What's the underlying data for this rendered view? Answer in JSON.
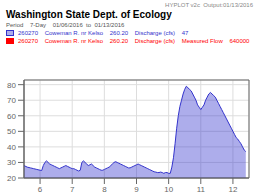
{
  "chart_data": {
    "type": "area",
    "title": "Washington State Dept. of Ecology",
    "subtitle": "Period    7-Day    01/06/2016  to  01/13/2016",
    "annotations": [
      {
        "text": "HYPLOT v2c  Output:01/13/2016"
      },
      {
        "text": "260270    Coweman R. nr Kelso    260.20    Discharge (cfs)    Measured Flow    640000",
        "color": "red"
      }
    ],
    "x": [
      5.5,
      5.6,
      5.7,
      5.8,
      5.9,
      6.0,
      6.05,
      6.1,
      6.15,
      6.2,
      6.25,
      6.3,
      6.35,
      6.4,
      6.45,
      6.5,
      6.55,
      6.6,
      6.65,
      6.7,
      6.75,
      6.8,
      6.85,
      6.9,
      6.95,
      7.0,
      7.05,
      7.1,
      7.15,
      7.2,
      7.25,
      7.3,
      7.35,
      7.4,
      7.45,
      7.5,
      7.55,
      7.6,
      7.65,
      7.7,
      7.75,
      7.8,
      7.85,
      7.9,
      7.95,
      8.0,
      8.05,
      8.1,
      8.15,
      8.2,
      8.25,
      8.3,
      8.35,
      8.4,
      8.45,
      8.5,
      8.55,
      8.6,
      8.65,
      8.7,
      8.75,
      8.8,
      8.85,
      8.9,
      8.95,
      9.0,
      9.05,
      9.1,
      9.15,
      9.2,
      9.25,
      9.3,
      9.35,
      9.4,
      9.45,
      9.5,
      9.55,
      9.6,
      9.65,
      9.7,
      9.75,
      9.8,
      9.85,
      9.9,
      9.95,
      10.0,
      10.05,
      10.1,
      10.15,
      10.2,
      10.25,
      10.3,
      10.35,
      10.4,
      10.45,
      10.5,
      10.55,
      10.6,
      10.65,
      10.7,
      10.75,
      10.8,
      10.85,
      10.9,
      10.95,
      11.0,
      11.05,
      11.1,
      11.15,
      11.2,
      11.25,
      11.3,
      11.35,
      11.4,
      11.45,
      11.5,
      11.55,
      11.6,
      11.65,
      11.7,
      11.75,
      11.8,
      11.85,
      11.9,
      11.95,
      12.0,
      12.05,
      12.1,
      12.15,
      12.2,
      12.25,
      12.3,
      12.35,
      12.4
    ],
    "series": [
      {
        "name": "260270    Coweman R. nr Kelso    260.20    Discharge (cfs)    47",
        "color": "#3333cc",
        "values": [
          28,
          27,
          26.5,
          26,
          25.5,
          25,
          24.8,
          28,
          30,
          31,
          30,
          29,
          28.5,
          28,
          27.5,
          27,
          26.5,
          26,
          26.5,
          27,
          27.5,
          28,
          27.5,
          27,
          26.5,
          26,
          26,
          25.5,
          25,
          24.5,
          25,
          30,
          31,
          30,
          29,
          28,
          28.5,
          29,
          28,
          27,
          26.5,
          26,
          25.5,
          25,
          25,
          25.5,
          26,
          26.5,
          27,
          28,
          29,
          30,
          30.5,
          30,
          29.5,
          29,
          28.5,
          28,
          27.5,
          27,
          26.5,
          26.5,
          27,
          27.5,
          28,
          28.5,
          29,
          28.5,
          28,
          27.5,
          27,
          26.5,
          26,
          25.5,
          25,
          24.5,
          24,
          23.8,
          23.5,
          23.5,
          23.8,
          23.5,
          23,
          23.5,
          23.5,
          23,
          23,
          27,
          33,
          42,
          52,
          60,
          66,
          70,
          74,
          77,
          79,
          78,
          77,
          76,
          74,
          72,
          70,
          67,
          65.5,
          64,
          65.5,
          67,
          70,
          72,
          74,
          75,
          74,
          73,
          72,
          70,
          68,
          66,
          64,
          62,
          60,
          58,
          56,
          54,
          52,
          50,
          48,
          46,
          45,
          43.5,
          42,
          40,
          38,
          37
        ]
      }
    ],
    "xlim": [
      5.5,
      12.5
    ],
    "xticks": [
      6,
      7,
      8,
      9,
      10,
      11,
      12
    ],
    "ylim": [
      20,
      83
    ],
    "yticks": [
      20,
      30,
      40,
      50,
      60,
      70,
      80
    ],
    "grid": true
  }
}
